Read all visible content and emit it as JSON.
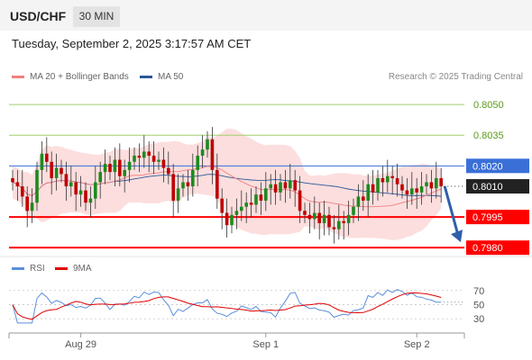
{
  "header": {
    "symbol": "USD/CHF",
    "timeframe": "30 MIN"
  },
  "timestamp": "Tuesday, September 2, 2025 3:17:57 AM CET",
  "price_legend": [
    {
      "label": "MA 20 + Bollinger Bands",
      "color": "#f08080"
    },
    {
      "label": "MA 50",
      "color": "#2b5797"
    }
  ],
  "credit": "Research © 2025 Trading Central",
  "rsi_legend": [
    {
      "label": "RSI",
      "color": "#5a8fdc"
    },
    {
      "label": "9MA",
      "color": "#e00000"
    }
  ],
  "colors": {
    "bull": "#1e8a1e",
    "bear": "#c00000",
    "support": "#ff0000",
    "resistance_green": "#a0cf6b",
    "pivot_blue": "#3a6fd8",
    "band_fill": "#fbd3d3",
    "arrow": "#2f5fa8"
  },
  "chart_data": {
    "type": "candlestick",
    "y_range": [
      0.7977,
      0.8058
    ],
    "x_ticks": [
      {
        "label": "Aug 29",
        "index": 14
      },
      {
        "label": "Sep 1",
        "index": 52
      },
      {
        "label": "Sep 2",
        "index": 83
      }
    ],
    "levels": [
      {
        "value": 0.805,
        "label": "0.8050",
        "kind": "resistance"
      },
      {
        "value": 0.8035,
        "label": "0.8035",
        "kind": "resistance"
      },
      {
        "value": 0.802,
        "label": "0.8020",
        "kind": "pivot"
      },
      {
        "value": 0.7995,
        "label": "0.7995",
        "kind": "support"
      },
      {
        "value": 0.798,
        "label": "0.7980",
        "kind": "support"
      }
    ],
    "last_price": {
      "value": 0.801,
      "label": "0.8010"
    },
    "forecast_arrow": {
      "from": 0.801,
      "to": 0.798
    },
    "closes": [
      0.8012,
      0.801,
      0.8005,
      0.7998,
      0.8002,
      0.8018,
      0.8026,
      0.8022,
      0.8014,
      0.8019,
      0.8016,
      0.801,
      0.8012,
      0.8006,
      0.8008,
      0.8002,
      0.8004,
      0.8012,
      0.8017,
      0.8021,
      0.8017,
      0.8023,
      0.8015,
      0.8018,
      0.8022,
      0.8025,
      0.8024,
      0.8027,
      0.8025,
      0.8022,
      0.8023,
      0.8019,
      0.8016,
      0.8003,
      0.8009,
      0.8012,
      0.801,
      0.8018,
      0.8025,
      0.8028,
      0.8033,
      0.8018,
      0.8004,
      0.7997,
      0.7991,
      0.7996,
      0.7998,
      0.8,
      0.8002,
      0.8001,
      0.8006,
      0.8003,
      0.8009,
      0.8011,
      0.8007,
      0.8012,
      0.8009,
      0.8013,
      0.8008,
      0.7998,
      0.7996,
      0.7994,
      0.7997,
      0.7992,
      0.7996,
      0.799,
      0.7989,
      0.7993,
      0.7992,
      0.7996,
      0.8,
      0.8005,
      0.8003,
      0.8011,
      0.8007,
      0.8014,
      0.8012,
      0.8015,
      0.8014,
      0.8011,
      0.8008,
      0.8006,
      0.8009,
      0.8007,
      0.801,
      0.8012,
      0.8009,
      0.8014,
      0.801
    ],
    "rsi": {
      "y_ticks": [
        70,
        50,
        30
      ],
      "y_range": [
        20,
        80
      ]
    }
  }
}
